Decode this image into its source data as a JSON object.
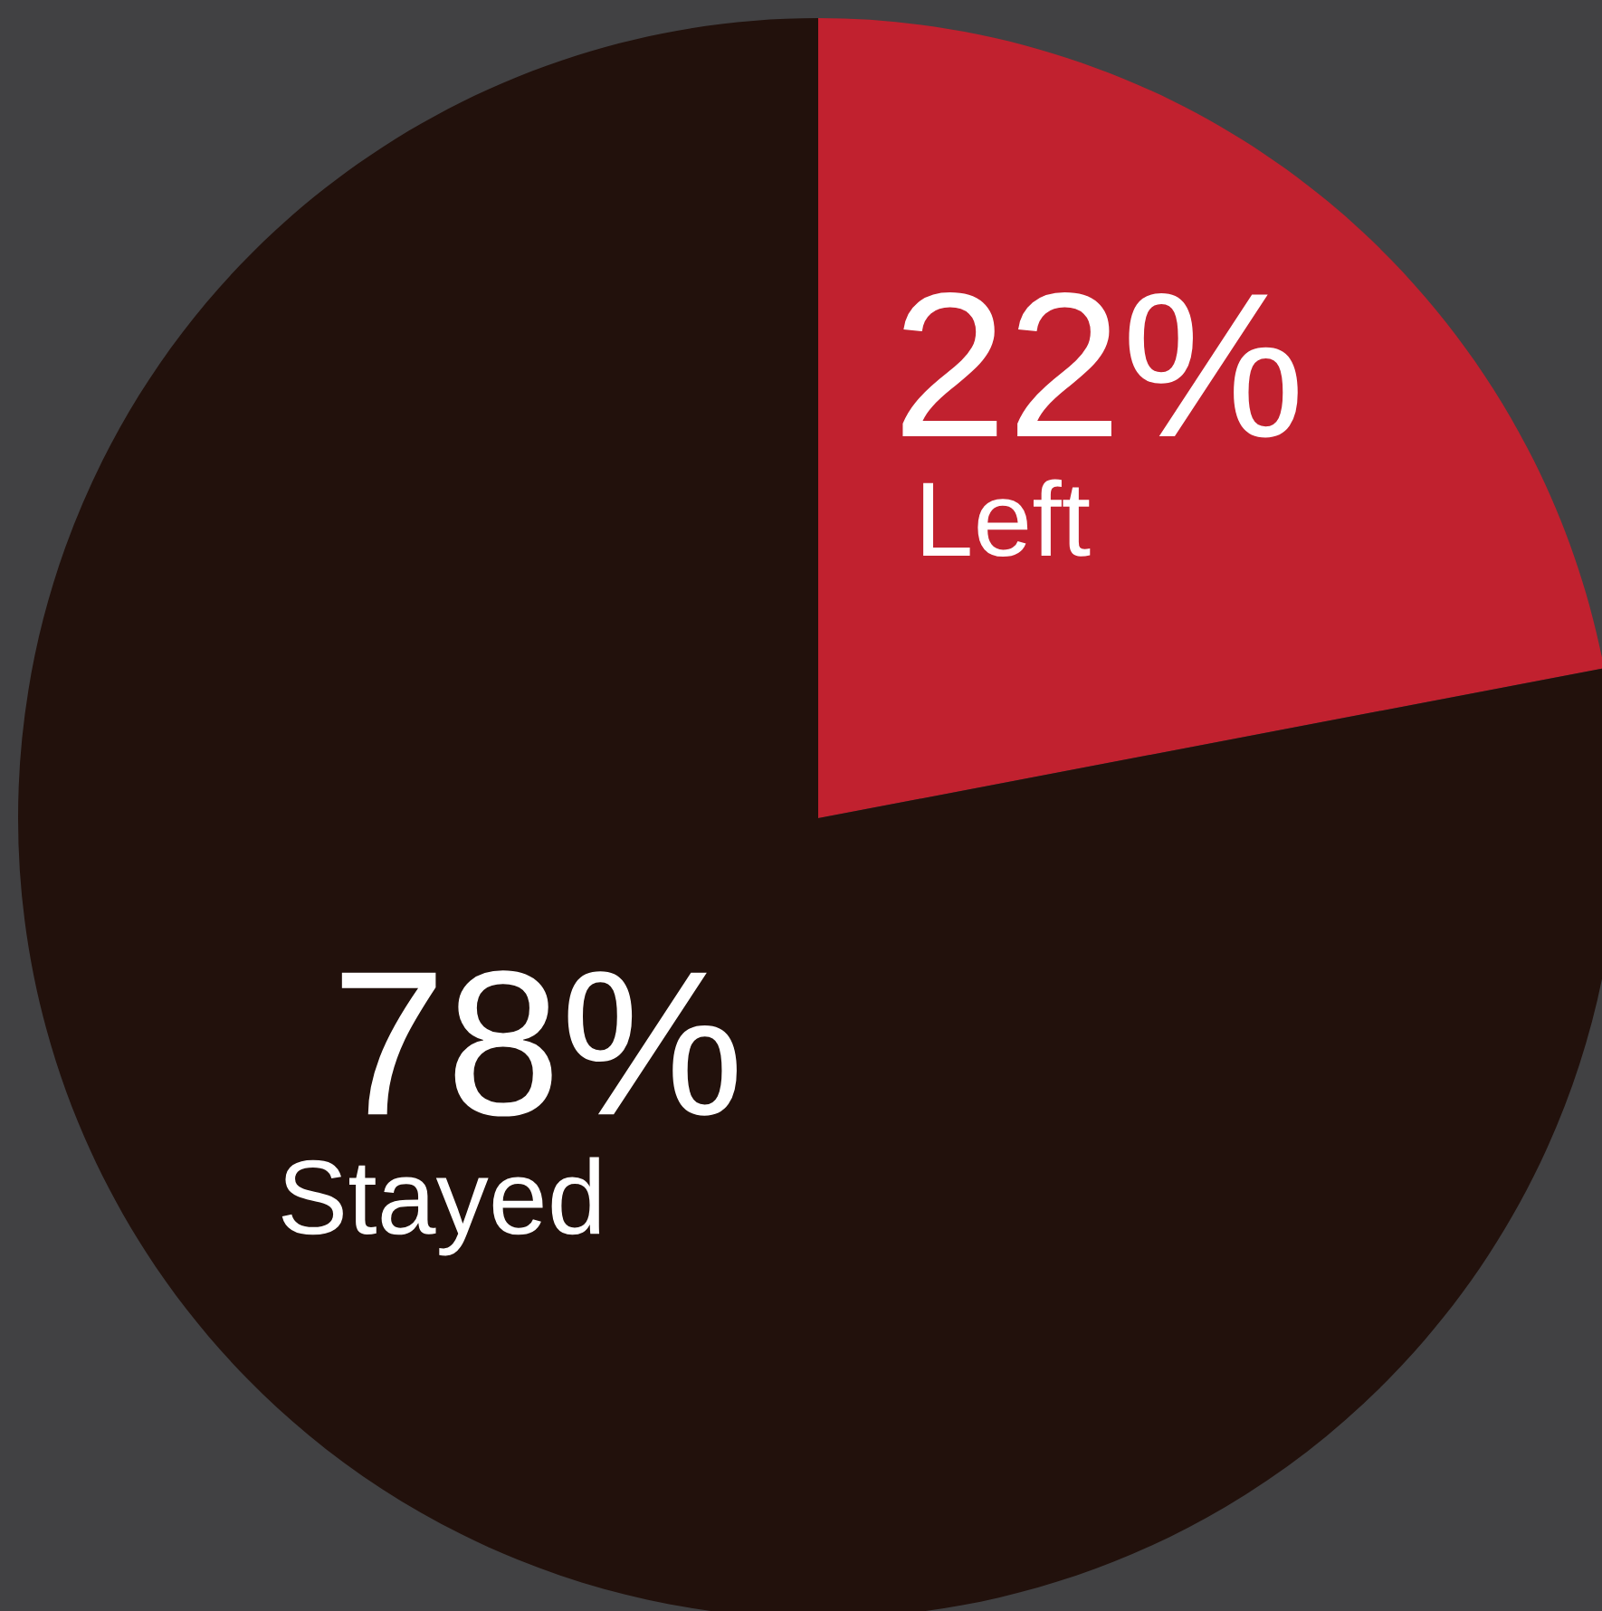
{
  "chart_data": {
    "type": "pie",
    "categories": [
      "Left",
      "Stayed"
    ],
    "values": [
      22,
      78
    ],
    "colors": [
      "#c1212f",
      "#22110c"
    ],
    "value_labels": [
      "22%",
      "78%"
    ]
  }
}
